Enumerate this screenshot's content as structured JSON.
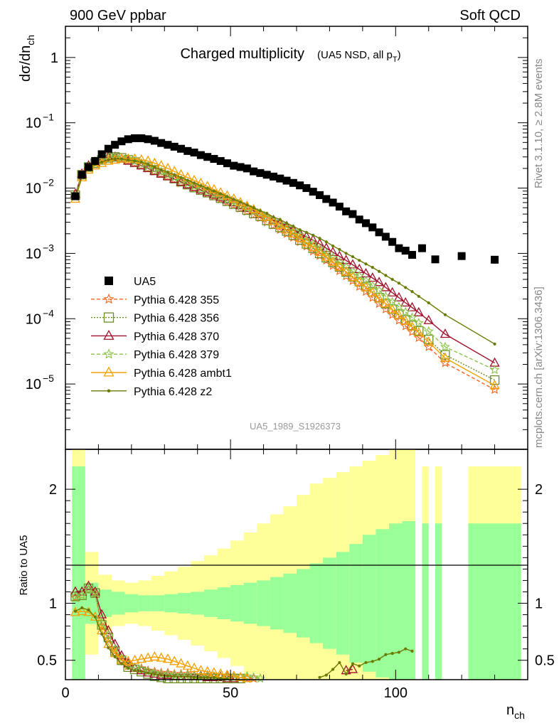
{
  "header": {
    "left": "900 GeV ppbar",
    "right": "Soft QCD",
    "side_top": "Rivet 3.1.10, ≥ 2.8M events",
    "side_bottom": "mcplots.cern.ch [arXiv:1306.3436]",
    "title_main": "Charged multiplicity",
    "title_sub": "(UA5 NSD, all p",
    "title_sub_idx": "T",
    "title_sub_close": ")",
    "analysis_id": "UA5_1989_S1926373"
  },
  "axes": {
    "ylabel_top": "dσ/dn",
    "ylabel_top_sub": "ch",
    "ylabel_bottom": "Ratio to UA5",
    "xlabel": "n",
    "xlabel_sub": "ch",
    "x_ticks": [
      "0",
      "50",
      "100"
    ],
    "y_ticks_top": [
      {
        "mant": "1",
        "exp": ""
      },
      {
        "mant": "10",
        "exp": "−1"
      },
      {
        "mant": "10",
        "exp": "−2"
      },
      {
        "mant": "10",
        "exp": "−3"
      },
      {
        "mant": "10",
        "exp": "−4"
      },
      {
        "mant": "10",
        "exp": "−5"
      }
    ],
    "y_ticks_bottom": [
      "0.5",
      "1",
      "2"
    ]
  },
  "legend": [
    {
      "label": "UA5",
      "color": "#000000",
      "marker": "square",
      "dash": "none"
    },
    {
      "label": "Pythia 6.428 355",
      "color": "#f26522",
      "marker": "star",
      "dash": "5,3"
    },
    {
      "label": "Pythia 6.428 356",
      "color": "#6b8e23",
      "marker": "opensquare",
      "dash": "2,2"
    },
    {
      "label": "Pythia 6.428 370",
      "color": "#a0102a",
      "marker": "triangle",
      "dash": "none"
    },
    {
      "label": "Pythia 6.428 379",
      "color": "#8bc34a",
      "marker": "star",
      "dash": "5,3"
    },
    {
      "label": "Pythia 6.428 ambt1",
      "color": "#f5a000",
      "marker": "triangle",
      "dash": "none"
    },
    {
      "label": "Pythia 6.428 z2",
      "color": "#6b7a00",
      "marker": "dot",
      "dash": "none"
    }
  ],
  "chart_data": {
    "type": "scatter",
    "x_scale": "linear",
    "y_scale_top": "log",
    "xlim": [
      0,
      140
    ],
    "ylim_top": [
      1e-06,
      3
    ],
    "ylim_bottom": [
      0.33,
      2.35
    ],
    "data": {
      "name": "UA5",
      "x": [
        3,
        5,
        7,
        9,
        11,
        13,
        15,
        17,
        19,
        21,
        23,
        25,
        27,
        29,
        31,
        33,
        35,
        37,
        39,
        41,
        43,
        45,
        47,
        49,
        51,
        53,
        55,
        57,
        59,
        61,
        63,
        65,
        67,
        69,
        71,
        73,
        75,
        77,
        79,
        81,
        83,
        85,
        87,
        89,
        91,
        93,
        95,
        97,
        99,
        101,
        103,
        105,
        108,
        112,
        120,
        130
      ],
      "y": [
        0.0075,
        0.016,
        0.021,
        0.026,
        0.033,
        0.04,
        0.046,
        0.052,
        0.056,
        0.058,
        0.058,
        0.056,
        0.053,
        0.049,
        0.046,
        0.043,
        0.04,
        0.037,
        0.035,
        0.032,
        0.03,
        0.028,
        0.026,
        0.024,
        0.022,
        0.021,
        0.02,
        0.018,
        0.017,
        0.016,
        0.015,
        0.014,
        0.013,
        0.012,
        0.011,
        0.01,
        0.0088,
        0.0078,
        0.0068,
        0.006,
        0.0052,
        0.0044,
        0.004,
        0.0033,
        0.0029,
        0.0025,
        0.0021,
        0.0018,
        0.0015,
        0.0012,
        0.0011,
        0.00095,
        0.0012,
        0.00081,
        0.00091,
        0.0008
      ]
    },
    "mc_x": [
      3,
      5,
      7,
      9,
      11,
      13,
      15,
      17,
      19,
      21,
      23,
      25,
      27,
      29,
      31,
      33,
      35,
      37,
      39,
      41,
      43,
      45,
      47,
      49,
      51,
      53,
      55,
      57,
      59,
      61,
      63,
      65,
      67,
      69,
      71,
      73,
      75,
      77,
      79,
      81,
      83,
      85,
      87,
      89,
      91,
      93,
      95,
      97,
      99,
      101,
      103,
      105,
      107,
      110,
      115,
      130
    ],
    "series": [
      {
        "name": "Pythia 6.428 355",
        "y": [
          0.0078,
          0.016,
          0.021,
          0.024,
          0.027,
          0.029,
          0.029,
          0.028,
          0.026,
          0.024,
          0.022,
          0.02,
          0.018,
          0.0165,
          0.015,
          0.0135,
          0.012,
          0.011,
          0.01,
          0.0092,
          0.0083,
          0.0075,
          0.0068,
          0.0061,
          0.0055,
          0.0049,
          0.0044,
          0.0039,
          0.0035,
          0.003,
          0.0027,
          0.0023,
          0.002,
          0.00175,
          0.0015,
          0.00128,
          0.00108,
          0.00092,
          0.00078,
          0.00065,
          0.00054,
          0.00045,
          0.00038,
          0.00031,
          0.00026,
          0.00021,
          0.00017,
          0.00014,
          0.000115,
          9.4e-05,
          7.7e-05,
          6.3e-05,
          5.1e-05,
          3.7e-05,
          2.1e-05,
          8.2e-06
        ]
      },
      {
        "name": "Pythia 6.428 356",
        "y": [
          0.0078,
          0.016,
          0.021,
          0.024,
          0.027,
          0.029,
          0.03,
          0.029,
          0.027,
          0.025,
          0.023,
          0.021,
          0.019,
          0.017,
          0.0155,
          0.014,
          0.0125,
          0.0113,
          0.0102,
          0.0093,
          0.0085,
          0.0077,
          0.007,
          0.0063,
          0.0057,
          0.0051,
          0.0046,
          0.0041,
          0.0037,
          0.0032,
          0.0028,
          0.0025,
          0.0022,
          0.0019,
          0.0016,
          0.0014,
          0.0012,
          0.001,
          0.00086,
          0.00073,
          0.00062,
          0.00052,
          0.00044,
          0.00037,
          0.00031,
          0.00026,
          0.00021,
          0.00017,
          0.00014,
          0.000117,
          9.6e-05,
          7.9e-05,
          6.5e-05,
          4.8e-05,
          2.8e-05,
          1.15e-05
        ]
      },
      {
        "name": "Pythia 6.428 370",
        "y": [
          0.0081,
          0.0165,
          0.022,
          0.025,
          0.028,
          0.03,
          0.03,
          0.028,
          0.026,
          0.024,
          0.022,
          0.02,
          0.018,
          0.0165,
          0.015,
          0.0137,
          0.0124,
          0.0113,
          0.0103,
          0.0094,
          0.0086,
          0.0079,
          0.0072,
          0.0066,
          0.006,
          0.0054,
          0.0049,
          0.0045,
          0.004,
          0.0036,
          0.0032,
          0.0029,
          0.0026,
          0.0023,
          0.002,
          0.0018,
          0.0016,
          0.0014,
          0.0012,
          0.00104,
          0.0009,
          0.00078,
          0.00067,
          0.00057,
          0.00049,
          0.00042,
          0.00036,
          0.0003,
          0.00025,
          0.00021,
          0.000175,
          0.000148,
          0.000124,
          9.4e-05,
          5.8e-05,
          2.1e-05
        ]
      },
      {
        "name": "Pythia 6.428 379",
        "y": [
          0.0078,
          0.016,
          0.021,
          0.024,
          0.027,
          0.029,
          0.03,
          0.029,
          0.028,
          0.026,
          0.024,
          0.022,
          0.0195,
          0.0178,
          0.016,
          0.0145,
          0.013,
          0.0118,
          0.0107,
          0.0097,
          0.0088,
          0.008,
          0.0073,
          0.0066,
          0.006,
          0.0054,
          0.0049,
          0.0044,
          0.004,
          0.0035,
          0.0031,
          0.0028,
          0.0025,
          0.0022,
          0.0019,
          0.0016,
          0.0014,
          0.0012,
          0.00101,
          0.00086,
          0.00073,
          0.00062,
          0.00053,
          0.00045,
          0.00038,
          0.00032,
          0.00027,
          0.00022,
          0.00018,
          0.000152,
          0.000126,
          0.000104,
          8.6e-05,
          6.4e-05,
          3.7e-05,
          1.65e-05
        ]
      },
      {
        "name": "Pythia 6.428 ambt1",
        "y": [
          0.0068,
          0.0145,
          0.019,
          0.022,
          0.024,
          0.026,
          0.027,
          0.028,
          0.028,
          0.028,
          0.027,
          0.026,
          0.024,
          0.022,
          0.02,
          0.018,
          0.016,
          0.0145,
          0.0131,
          0.0118,
          0.0106,
          0.0095,
          0.0085,
          0.0076,
          0.0068,
          0.006,
          0.0053,
          0.0047,
          0.0041,
          0.0036,
          0.0031,
          0.0027,
          0.0023,
          0.002,
          0.0017,
          0.00145,
          0.00123,
          0.00104,
          0.00088,
          0.00074,
          0.00062,
          0.00052,
          0.00043,
          0.00036,
          0.0003,
          0.00025,
          0.0002,
          0.00017,
          0.000137,
          0.000112,
          9.2e-05,
          7.5e-05,
          6.1e-05,
          4.4e-05,
          2.5e-05,
          9.5e-06
        ]
      },
      {
        "name": "Pythia 6.428 z2",
        "y": [
          0.007,
          0.015,
          0.02,
          0.023,
          0.025,
          0.027,
          0.028,
          0.028,
          0.027,
          0.026,
          0.025,
          0.023,
          0.021,
          0.019,
          0.0175,
          0.016,
          0.0145,
          0.0132,
          0.012,
          0.0109,
          0.0099,
          0.009,
          0.0082,
          0.0074,
          0.0067,
          0.0061,
          0.0055,
          0.005,
          0.0045,
          0.0041,
          0.0036,
          0.0033,
          0.0029,
          0.0026,
          0.0023,
          0.0021,
          0.0019,
          0.0017,
          0.0015,
          0.0013,
          0.00115,
          0.001,
          0.00089,
          0.00078,
          0.00069,
          0.00061,
          0.00053,
          0.00046,
          0.0004,
          0.00035,
          0.0003,
          0.00026,
          0.00022,
          0.000175,
          0.000115,
          4.1e-05
        ]
      }
    ],
    "ratio": {
      "x": [
        3,
        5,
        7,
        9,
        11,
        13,
        15,
        17,
        19,
        21,
        23,
        25,
        27,
        29,
        31,
        33,
        35,
        37,
        39,
        41,
        43,
        45,
        47,
        49,
        51,
        53,
        55,
        57,
        59,
        61,
        63,
        65,
        67,
        69,
        71,
        73,
        75,
        77,
        79,
        81,
        83,
        85,
        87,
        89,
        91,
        93,
        95,
        97,
        99,
        101,
        103,
        105
      ],
      "series": [
        {
          "name": "Pythia 6.428 355",
          "y": [
            1.05,
            1.07,
            1.12,
            1.08,
            0.8,
            0.68,
            0.58,
            0.5,
            0.45,
            0.43,
            0.43,
            0.41,
            0.4,
            0.39,
            0.39,
            0.38,
            0.38,
            0.38,
            0.37,
            0.37,
            0.37,
            0.36,
            0.36,
            0.36,
            0.35,
            0.35,
            0.34,
            0.34,
            null,
            null,
            null,
            null,
            null,
            null,
            null,
            null,
            null,
            null,
            null,
            null,
            null,
            null,
            null,
            null,
            null,
            null,
            null,
            null,
            null,
            null,
            null,
            null
          ]
        },
        {
          "name": "Pythia 6.428 356",
          "y": [
            1.06,
            1.07,
            1.13,
            1.09,
            0.81,
            0.7,
            0.58,
            0.5,
            0.44,
            0.42,
            0.4,
            0.38,
            0.36,
            0.35,
            0.34,
            0.34,
            0.34,
            0.34,
            0.34,
            0.34,
            0.34,
            0.34,
            0.34,
            0.34,
            0.34,
            0.34,
            null,
            null,
            null,
            null,
            null,
            null,
            null,
            null,
            null,
            null,
            null,
            null,
            null,
            null,
            null,
            null,
            null,
            null,
            null,
            null,
            null,
            null,
            null,
            null,
            null,
            null
          ]
        },
        {
          "name": "Pythia 6.428 370",
          "y": [
            1.1,
            1.1,
            1.15,
            1.1,
            0.9,
            0.76,
            0.64,
            0.54,
            0.47,
            0.43,
            0.41,
            0.39,
            0.38,
            0.37,
            0.37,
            0.36,
            0.36,
            0.36,
            0.36,
            0.36,
            0.35,
            0.35,
            0.35,
            0.34,
            0.34,
            null,
            null,
            null,
            null,
            null,
            null,
            null,
            null,
            null,
            null,
            null,
            null,
            null,
            null,
            null,
            null,
            0.41,
            0.42,
            null,
            null,
            null,
            null,
            null,
            null,
            null,
            null,
            null
          ]
        },
        {
          "name": "Pythia 6.428 379",
          "y": [
            1.06,
            1.07,
            1.12,
            1.09,
            0.83,
            0.72,
            0.6,
            0.52,
            0.46,
            0.43,
            0.42,
            0.4,
            0.39,
            0.38,
            0.38,
            0.37,
            0.37,
            0.37,
            0.37,
            0.36,
            0.36,
            0.36,
            0.35,
            0.35,
            0.35,
            0.35,
            0.36,
            0.35,
            0.34,
            null,
            null,
            null,
            null,
            null,
            null,
            null,
            null,
            null,
            null,
            null,
            null,
            null,
            null,
            null,
            null,
            null,
            null,
            null,
            null,
            null,
            null,
            null
          ]
        },
        {
          "name": "Pythia 6.428 ambt1",
          "y": [
            0.92,
            0.93,
            0.92,
            0.88,
            0.76,
            0.64,
            0.56,
            0.5,
            0.49,
            0.5,
            0.51,
            0.52,
            0.53,
            0.52,
            0.51,
            0.49,
            0.47,
            0.45,
            0.43,
            0.41,
            0.4,
            0.39,
            0.38,
            0.37,
            0.36,
            0.35,
            0.34,
            null,
            null,
            null,
            null,
            null,
            null,
            null,
            null,
            null,
            null,
            null,
            null,
            null,
            null,
            null,
            null,
            null,
            null,
            null,
            null,
            null,
            null,
            null,
            null,
            null
          ]
        },
        {
          "name": "Pythia 6.428 z2",
          "y": [
            0.93,
            0.96,
            0.94,
            0.88,
            0.73,
            0.61,
            0.53,
            0.47,
            0.43,
            0.41,
            0.4,
            0.39,
            0.38,
            0.37,
            0.36,
            0.36,
            0.36,
            0.36,
            0.35,
            0.35,
            0.35,
            0.35,
            0.34,
            0.34,
            null,
            null,
            null,
            null,
            null,
            null,
            null,
            null,
            null,
            null,
            null,
            null,
            null,
            0.35,
            0.37,
            0.42,
            0.48,
            0.38,
            0.47,
            0.45,
            0.48,
            0.49,
            0.51,
            0.55,
            0.56,
            0.57,
            0.6,
            0.58
          ]
        }
      ]
    },
    "bands": {
      "x_edges": [
        2,
        6,
        10,
        14,
        18,
        22,
        26,
        30,
        34,
        38,
        42,
        46,
        50,
        54,
        58,
        62,
        66,
        70,
        74,
        78,
        82,
        86,
        90,
        94,
        98,
        102,
        106,
        108,
        110,
        112,
        114,
        122,
        138
      ],
      "inner": [
        2.2,
        1.18,
        1.12,
        1.1,
        1.08,
        1.07,
        1.07,
        1.08,
        1.09,
        1.1,
        1.12,
        1.14,
        1.16,
        1.18,
        1.2,
        1.23,
        1.26,
        1.3,
        1.35,
        1.4,
        1.45,
        1.52,
        1.6,
        1.65,
        1.7,
        1.72,
        null,
        1.7,
        null,
        1.7,
        null,
        1.7
      ],
      "outer": [
        2.35,
        1.45,
        1.25,
        1.2,
        1.18,
        1.2,
        1.24,
        1.28,
        1.32,
        1.37,
        1.42,
        1.48,
        1.55,
        1.62,
        1.7,
        1.78,
        1.85,
        1.95,
        2.05,
        2.1,
        2.15,
        2.2,
        2.25,
        2.3,
        2.35,
        2.35,
        null,
        2.2,
        null,
        2.2,
        null,
        2.2
      ]
    }
  }
}
